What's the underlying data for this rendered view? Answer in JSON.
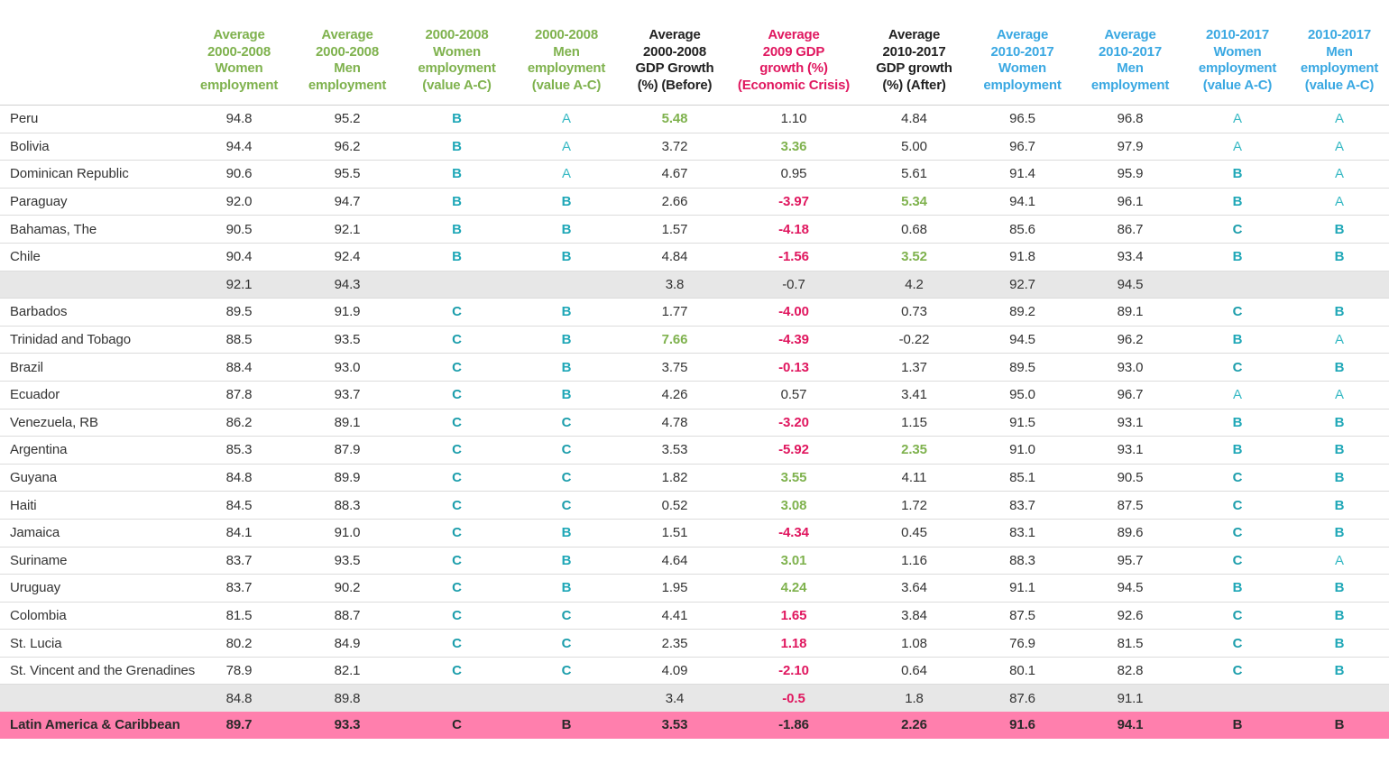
{
  "chart_data": {
    "type": "table",
    "columns": [
      {
        "key": "name",
        "label": []
      },
      {
        "key": "w0008",
        "label": [
          "Average",
          "2000-2008",
          "Women",
          "employment"
        ],
        "color": "#7fb24e"
      },
      {
        "key": "m0008",
        "label": [
          "Average",
          "2000-2008",
          "Men",
          "employment"
        ],
        "color": "#7fb24e"
      },
      {
        "key": "wg0008",
        "label": [
          "2000-2008",
          "Women",
          "employment",
          "(value A-C)"
        ],
        "color": "#7fb24e"
      },
      {
        "key": "mg0008",
        "label": [
          "2000-2008",
          "Men",
          "employment",
          "(value A-C)"
        ],
        "color": "#7fb24e"
      },
      {
        "key": "gdp_before",
        "label": [
          "Average",
          "2000-2008",
          "GDP Growth",
          "(%) (Before)"
        ],
        "color": "#222222"
      },
      {
        "key": "gdp_2009",
        "label": [
          "Average",
          "2009 GDP",
          "growth (%)",
          "(Economic Crisis)"
        ],
        "color": "#e0175f"
      },
      {
        "key": "gdp_after",
        "label": [
          "Average",
          "2010-2017",
          "GDP growth",
          "(%) (After)"
        ],
        "color": "#222222"
      },
      {
        "key": "w1017",
        "label": [
          "Average",
          "2010-2017",
          "Women",
          "employment"
        ],
        "color": "#3aa8e2"
      },
      {
        "key": "m1017",
        "label": [
          "Average",
          "2010-2017",
          "Men",
          "employment"
        ],
        "color": "#3aa8e2"
      },
      {
        "key": "wg1017",
        "label": [
          "2010-2017",
          "Women",
          "employment",
          "(value A-C)"
        ],
        "color": "#3aa8e2"
      },
      {
        "key": "mg1017",
        "label": [
          "2010-2017",
          "Men",
          "employment",
          "(value A-C)"
        ],
        "color": "#3aa8e2"
      }
    ],
    "rows": [
      {
        "type": "country",
        "cells": [
          "Peru",
          "94.8",
          "95.2",
          "B",
          "A",
          "5.48",
          "1.10",
          "4.84",
          "96.5",
          "96.8",
          "A",
          "A"
        ],
        "highlight": {
          "gdp_before": "green"
        }
      },
      {
        "type": "country",
        "cells": [
          "Bolivia",
          "94.4",
          "96.2",
          "B",
          "A",
          "3.72",
          "3.36",
          "5.00",
          "96.7",
          "97.9",
          "A",
          "A"
        ],
        "highlight": {
          "gdp_2009": "green"
        }
      },
      {
        "type": "country",
        "cells": [
          "Dominican Republic",
          "90.6",
          "95.5",
          "B",
          "A",
          "4.67",
          "0.95",
          "5.61",
          "91.4",
          "95.9",
          "B",
          "A"
        ],
        "highlight": {}
      },
      {
        "type": "country",
        "cells": [
          "Paraguay",
          "92.0",
          "94.7",
          "B",
          "B",
          "2.66",
          "-3.97",
          "5.34",
          "94.1",
          "96.1",
          "B",
          "A"
        ],
        "highlight": {
          "gdp_2009": "red",
          "gdp_after": "green"
        }
      },
      {
        "type": "country",
        "cells": [
          "Bahamas, The",
          "90.5",
          "92.1",
          "B",
          "B",
          "1.57",
          "-4.18",
          "0.68",
          "85.6",
          "86.7",
          "C",
          "B"
        ],
        "highlight": {
          "gdp_2009": "red"
        }
      },
      {
        "type": "country",
        "cells": [
          "Chile",
          "90.4",
          "92.4",
          "B",
          "B",
          "4.84",
          "-1.56",
          "3.52",
          "91.8",
          "93.4",
          "B",
          "B"
        ],
        "highlight": {
          "gdp_2009": "red",
          "gdp_after": "green"
        }
      },
      {
        "type": "avg",
        "cells": [
          "",
          "92.1",
          "94.3",
          "",
          "",
          "3.8",
          "-0.7",
          "4.2",
          "92.7",
          "94.5",
          "",
          ""
        ],
        "highlight": {}
      },
      {
        "type": "country",
        "cells": [
          "Barbados",
          "89.5",
          "91.9",
          "C",
          "B",
          "1.77",
          "-4.00",
          "0.73",
          "89.2",
          "89.1",
          "C",
          "B"
        ],
        "highlight": {
          "gdp_2009": "red"
        }
      },
      {
        "type": "country",
        "cells": [
          "Trinidad and Tobago",
          "88.5",
          "93.5",
          "C",
          "B",
          "7.66",
          "-4.39",
          "-0.22",
          "94.5",
          "96.2",
          "B",
          "A"
        ],
        "highlight": {
          "gdp_before": "green",
          "gdp_2009": "red"
        }
      },
      {
        "type": "country",
        "cells": [
          "Brazil",
          "88.4",
          "93.0",
          "C",
          "B",
          "3.75",
          "-0.13",
          "1.37",
          "89.5",
          "93.0",
          "C",
          "B"
        ],
        "highlight": {
          "gdp_2009": "red"
        }
      },
      {
        "type": "country",
        "cells": [
          "Ecuador",
          "87.8",
          "93.7",
          "C",
          "B",
          "4.26",
          "0.57",
          "3.41",
          "95.0",
          "96.7",
          "A",
          "A"
        ],
        "highlight": {}
      },
      {
        "type": "country",
        "cells": [
          "Venezuela, RB",
          "86.2",
          "89.1",
          "C",
          "C",
          "4.78",
          "-3.20",
          "1.15",
          "91.5",
          "93.1",
          "B",
          "B"
        ],
        "highlight": {
          "gdp_2009": "red"
        }
      },
      {
        "type": "country",
        "cells": [
          "Argentina",
          "85.3",
          "87.9",
          "C",
          "C",
          "3.53",
          "-5.92",
          "2.35",
          "91.0",
          "93.1",
          "B",
          "B"
        ],
        "highlight": {
          "gdp_2009": "red",
          "gdp_after": "green"
        }
      },
      {
        "type": "country",
        "cells": [
          "Guyana",
          "84.8",
          "89.9",
          "C",
          "C",
          "1.82",
          "3.55",
          "4.11",
          "85.1",
          "90.5",
          "C",
          "B"
        ],
        "highlight": {
          "gdp_2009": "green"
        }
      },
      {
        "type": "country",
        "cells": [
          "Haiti",
          "84.5",
          "88.3",
          "C",
          "C",
          "0.52",
          "3.08",
          "1.72",
          "83.7",
          "87.5",
          "C",
          "B"
        ],
        "highlight": {
          "gdp_2009": "green"
        }
      },
      {
        "type": "country",
        "cells": [
          "Jamaica",
          "84.1",
          "91.0",
          "C",
          "B",
          "1.51",
          "-4.34",
          "0.45",
          "83.1",
          "89.6",
          "C",
          "B"
        ],
        "highlight": {
          "gdp_2009": "red"
        }
      },
      {
        "type": "country",
        "cells": [
          "Suriname",
          "83.7",
          "93.5",
          "C",
          "B",
          "4.64",
          "3.01",
          "1.16",
          "88.3",
          "95.7",
          "C",
          "A"
        ],
        "highlight": {
          "gdp_2009": "green"
        }
      },
      {
        "type": "country",
        "cells": [
          "Uruguay",
          "83.7",
          "90.2",
          "C",
          "B",
          "1.95",
          "4.24",
          "3.64",
          "91.1",
          "94.5",
          "B",
          "B"
        ],
        "highlight": {
          "gdp_2009": "green"
        }
      },
      {
        "type": "country",
        "cells": [
          "Colombia",
          "81.5",
          "88.7",
          "C",
          "C",
          "4.41",
          "1.65",
          "3.84",
          "87.5",
          "92.6",
          "C",
          "B"
        ],
        "highlight": {
          "gdp_2009": "red"
        }
      },
      {
        "type": "country",
        "cells": [
          "St. Lucia",
          "80.2",
          "84.9",
          "C",
          "C",
          "2.35",
          "1.18",
          "1.08",
          "76.9",
          "81.5",
          "C",
          "B"
        ],
        "highlight": {
          "gdp_2009": "red"
        }
      },
      {
        "type": "country",
        "cells": [
          "St. Vincent and the Grenadines",
          "78.9",
          "82.1",
          "C",
          "C",
          "4.09",
          "-2.10",
          "0.64",
          "80.1",
          "82.8",
          "C",
          "B"
        ],
        "highlight": {
          "gdp_2009": "red"
        }
      },
      {
        "type": "avg",
        "cells": [
          "",
          "84.8",
          "89.8",
          "",
          "",
          "3.4",
          "-0.5",
          "1.8",
          "87.6",
          "91.1",
          "",
          ""
        ],
        "highlight": {
          "gdp_2009": "red"
        }
      },
      {
        "type": "total",
        "cells": [
          "Latin America & Caribbean",
          "89.7",
          "93.3",
          "C",
          "B",
          "3.53",
          "-1.86",
          "2.26",
          "91.6",
          "94.1",
          "B",
          "B"
        ],
        "highlight": {}
      }
    ]
  }
}
